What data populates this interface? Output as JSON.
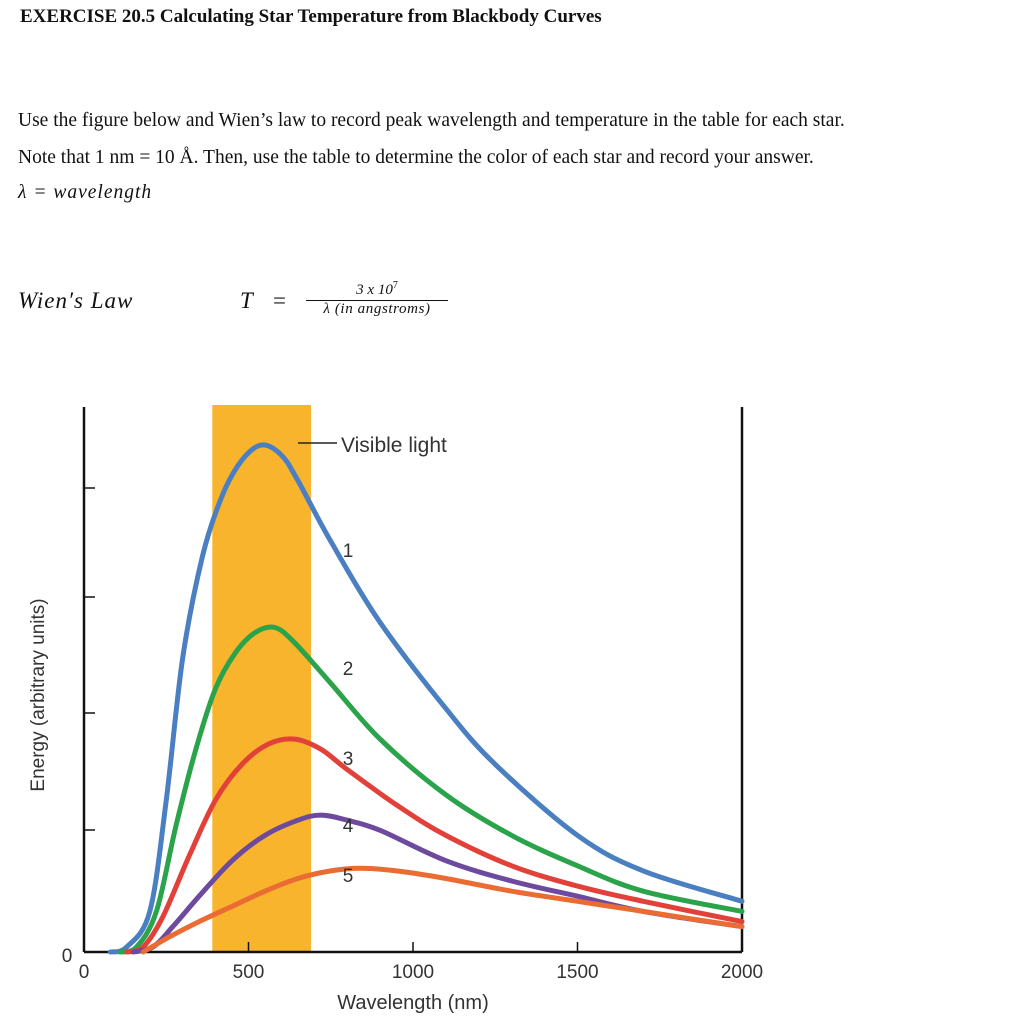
{
  "title": "EXERCISE 20.5 Calculating Star Temperature from Blackbody Curves",
  "instructions": {
    "line1": "Use the figure below and Wien’s law to record peak wavelength and temperature in the table for each star.",
    "line2": "Note that 1 nm = 10 Å. Then, use the table to determine the color of each star and record your answer.",
    "lambda_def": "λ = wavelength"
  },
  "wien": {
    "label": "Wien′s Law",
    "T": "T",
    "equals": "=",
    "numerator_base": "3 x 10",
    "numerator_exp": "7",
    "denominator": "λ (in angstroms)"
  },
  "chart_data": {
    "type": "line",
    "xlabel": "Wavelength (nm)",
    "ylabel": "Energy (arbitrary units)",
    "xlim": [
      0,
      2000
    ],
    "xticks": [
      "0",
      "500",
      "1000",
      "1500",
      "2000"
    ],
    "yticks": [
      "0"
    ],
    "visible_band": {
      "label": "Visible light",
      "from": 390,
      "to": 690,
      "color": "#f9b42d"
    },
    "series": [
      {
        "name": "1",
        "color": "#4a7fc1",
        "peak_x": 540,
        "points": [
          [
            80,
            0
          ],
          [
            130,
            1
          ],
          [
            200,
            8
          ],
          [
            250,
            30
          ],
          [
            300,
            58
          ],
          [
            360,
            78
          ],
          [
            420,
            90
          ],
          [
            480,
            97
          ],
          [
            540,
            100
          ],
          [
            600,
            98
          ],
          [
            650,
            93
          ],
          [
            750,
            81
          ],
          [
            900,
            65
          ],
          [
            1100,
            48
          ],
          [
            1250,
            37
          ],
          [
            1500,
            23
          ],
          [
            1700,
            16
          ],
          [
            2000,
            10
          ]
        ]
      },
      {
        "name": "2",
        "color": "#2ba34a",
        "peak_x": 580,
        "points": [
          [
            110,
            0
          ],
          [
            160,
            1
          ],
          [
            220,
            8
          ],
          [
            280,
            25
          ],
          [
            340,
            40
          ],
          [
            400,
            52
          ],
          [
            460,
            59
          ],
          [
            520,
            63
          ],
          [
            580,
            64
          ],
          [
            640,
            61
          ],
          [
            750,
            53
          ],
          [
            900,
            42
          ],
          [
            1100,
            31
          ],
          [
            1300,
            23
          ],
          [
            1500,
            17
          ],
          [
            1700,
            12
          ],
          [
            2000,
            8
          ]
        ]
      },
      {
        "name": "3",
        "color": "#e2413a",
        "peak_x": 640,
        "points": [
          [
            130,
            0
          ],
          [
            180,
            1
          ],
          [
            240,
            7
          ],
          [
            320,
            19
          ],
          [
            400,
            30
          ],
          [
            480,
            37
          ],
          [
            560,
            41
          ],
          [
            640,
            42
          ],
          [
            720,
            40
          ],
          [
            800,
            36
          ],
          [
            950,
            29
          ],
          [
            1100,
            23
          ],
          [
            1300,
            17
          ],
          [
            1500,
            13
          ],
          [
            1700,
            10
          ],
          [
            2000,
            6
          ]
        ]
      },
      {
        "name": "4",
        "color": "#6e4a9e",
        "peak_x": 720,
        "points": [
          [
            150,
            0
          ],
          [
            210,
            1
          ],
          [
            270,
            5
          ],
          [
            350,
            11
          ],
          [
            450,
            18
          ],
          [
            550,
            23
          ],
          [
            650,
            26
          ],
          [
            720,
            27
          ],
          [
            800,
            26
          ],
          [
            900,
            24
          ],
          [
            1100,
            18
          ],
          [
            1300,
            14
          ],
          [
            1500,
            11
          ],
          [
            1700,
            8
          ],
          [
            2000,
            5
          ]
        ]
      },
      {
        "name": "5",
        "color": "#ea6c33",
        "peak_x": 840,
        "points": [
          [
            180,
            0
          ],
          [
            260,
            3
          ],
          [
            350,
            6
          ],
          [
            450,
            9
          ],
          [
            550,
            12
          ],
          [
            650,
            14.5
          ],
          [
            750,
            16
          ],
          [
            840,
            16.5
          ],
          [
            950,
            16
          ],
          [
            1100,
            14.5
          ],
          [
            1300,
            12
          ],
          [
            1500,
            10
          ],
          [
            1700,
            8
          ],
          [
            2000,
            5
          ]
        ]
      }
    ]
  }
}
